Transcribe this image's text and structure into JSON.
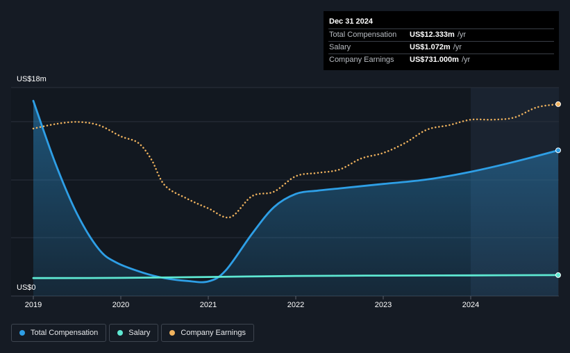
{
  "tooltip": {
    "date": "Dec 31 2024",
    "rows": [
      {
        "label": "Total Compensation",
        "value": "US$12.333m",
        "unit": "/yr",
        "color": "#2e9fe6"
      },
      {
        "label": "Salary",
        "value": "US$1.072m",
        "unit": "/yr",
        "color": "#5ee8d2"
      },
      {
        "label": "Company Earnings",
        "value": "US$731.000m",
        "unit": "/yr",
        "color": "#f0b35e"
      }
    ]
  },
  "y_axis": {
    "top_label": "US$18m",
    "bottom_label": "US$0"
  },
  "legend": [
    {
      "label": "Total Compensation",
      "color": "#2e9fe6"
    },
    {
      "label": "Salary",
      "color": "#5ee8d2"
    },
    {
      "label": "Company Earnings",
      "color": "#f0b35e"
    }
  ],
  "chart_data": {
    "type": "line",
    "ylim": [
      0,
      18
    ],
    "xlim": [
      2019.0,
      2025.0
    ],
    "x_ticks": [
      "2019",
      "2020",
      "2021",
      "2022",
      "2023",
      "2024"
    ],
    "y_unit": "US$m",
    "highlight_from": 2024.0,
    "series": [
      {
        "name": "Total Compensation",
        "color": "#2e9fe6",
        "style": "solid-area",
        "points": [
          [
            2019.0,
            16.8
          ],
          [
            2019.25,
            11.2
          ],
          [
            2019.5,
            6.6
          ],
          [
            2019.75,
            3.4
          ],
          [
            2019.95,
            2.2
          ],
          [
            2020.25,
            1.3
          ],
          [
            2020.5,
            0.8
          ],
          [
            2020.75,
            0.55
          ],
          [
            2021.0,
            0.5
          ],
          [
            2021.2,
            1.5
          ],
          [
            2021.5,
            4.8
          ],
          [
            2021.75,
            7.2
          ],
          [
            2022.0,
            8.4
          ],
          [
            2022.25,
            8.7
          ],
          [
            2022.5,
            8.9
          ],
          [
            2023.0,
            9.3
          ],
          [
            2023.5,
            9.7
          ],
          [
            2024.0,
            10.4
          ],
          [
            2024.5,
            11.3
          ],
          [
            2025.0,
            12.333
          ]
        ]
      },
      {
        "name": "Salary",
        "color": "#5ee8d2",
        "style": "solid",
        "points": [
          [
            2019.0,
            0.8
          ],
          [
            2020.0,
            0.82
          ],
          [
            2021.0,
            0.9
          ],
          [
            2022.0,
            1.0
          ],
          [
            2023.0,
            1.03
          ],
          [
            2024.0,
            1.05
          ],
          [
            2025.0,
            1.072
          ]
        ]
      },
      {
        "name": "Company Earnings",
        "color": "#f0b35e",
        "style": "dotted",
        "points": [
          [
            2019.0,
            14.3
          ],
          [
            2019.25,
            14.7
          ],
          [
            2019.5,
            14.9
          ],
          [
            2019.75,
            14.6
          ],
          [
            2020.0,
            13.6
          ],
          [
            2020.2,
            13.0
          ],
          [
            2020.35,
            11.5
          ],
          [
            2020.5,
            9.2
          ],
          [
            2020.75,
            8.0
          ],
          [
            2021.0,
            7.1
          ],
          [
            2021.25,
            6.3
          ],
          [
            2021.5,
            8.2
          ],
          [
            2021.75,
            8.6
          ],
          [
            2022.0,
            10.0
          ],
          [
            2022.25,
            10.3
          ],
          [
            2022.5,
            10.6
          ],
          [
            2022.75,
            11.6
          ],
          [
            2023.0,
            12.1
          ],
          [
            2023.25,
            13.0
          ],
          [
            2023.5,
            14.2
          ],
          [
            2023.75,
            14.6
          ],
          [
            2024.0,
            15.1
          ],
          [
            2024.25,
            15.1
          ],
          [
            2024.5,
            15.3
          ],
          [
            2024.75,
            16.2
          ],
          [
            2025.0,
            16.5
          ]
        ]
      }
    ]
  }
}
